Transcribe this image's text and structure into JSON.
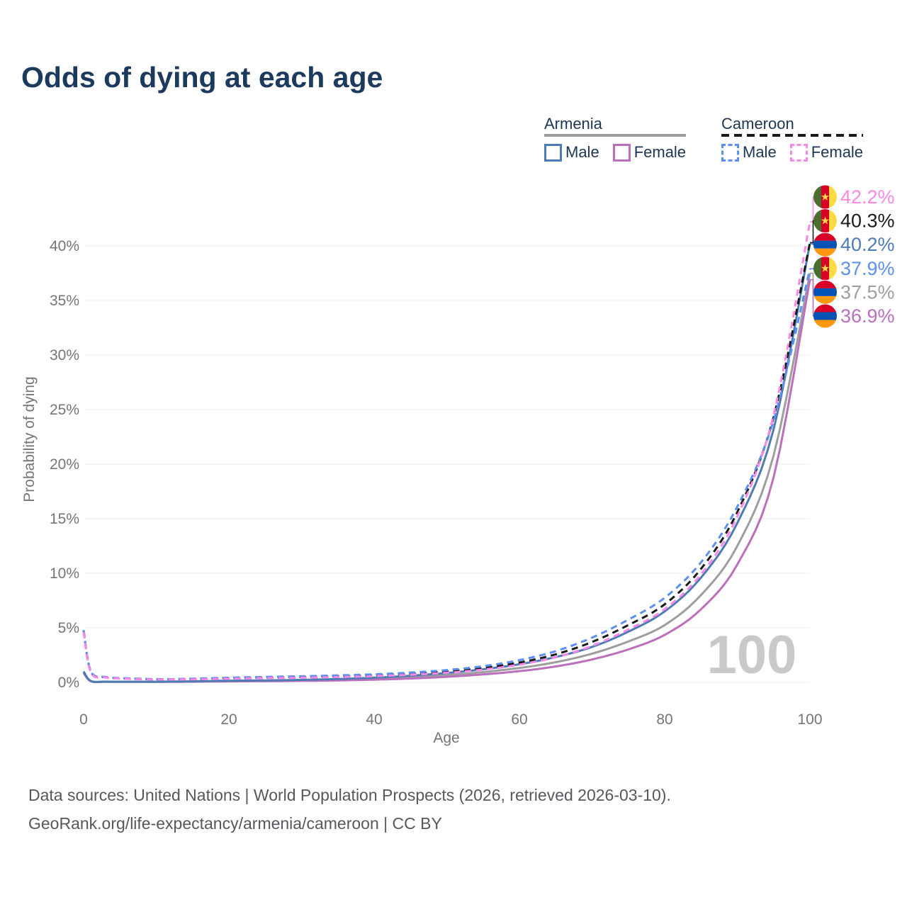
{
  "title": "Odds of dying at each age",
  "legend": {
    "groups": [
      {
        "name": "Armenia",
        "line_color": "#9e9e9e",
        "line_style": "solid",
        "items": [
          {
            "label": "Male",
            "color": "#4d7cb4",
            "style": "solid"
          },
          {
            "label": "Female",
            "color": "#bb6fbd",
            "style": "solid"
          }
        ]
      },
      {
        "name": "Cameroon",
        "line_color": "#1a1a1a",
        "line_style": "dashed",
        "items": [
          {
            "label": "Male",
            "color": "#5b8ff2",
            "style": "dashed"
          },
          {
            "label": "Female",
            "color": "#fb87e6",
            "style": "dashed"
          }
        ]
      }
    ]
  },
  "watermark": "100",
  "footer": {
    "line1": "Data sources: United Nations | World Population Prospects (2026, retrieved 2026-03-10).",
    "line2": "GeoRank.org/life-expectancy/armenia/cameroon | CC BY"
  },
  "flag_colors": {
    "armenia": [
      "#D80027",
      "#0052B4",
      "#FF9811"
    ],
    "cameroon": [
      "#496E2D",
      "#D80027",
      "#FFDA44"
    ]
  },
  "chart_data": {
    "type": "line",
    "title": "Odds of dying at each age",
    "xlabel": "Age",
    "ylabel": "Probability of dying",
    "xlim": [
      0,
      100
    ],
    "ylim": [
      0,
      43
    ],
    "x_ticks": [
      0,
      20,
      40,
      60,
      80,
      100
    ],
    "y_tick_labels": [
      "0%",
      "5%",
      "10%",
      "15%",
      "20%",
      "25%",
      "30%",
      "35%",
      "40%"
    ],
    "grid": "horizontal-only",
    "legend_position": "top-right",
    "ages": [
      0,
      1,
      3,
      5,
      10,
      15,
      20,
      25,
      30,
      35,
      40,
      45,
      50,
      55,
      60,
      65,
      70,
      75,
      80,
      85,
      90,
      95,
      100
    ],
    "series": [
      {
        "name": "Armenia Both",
        "country": "Armenia",
        "sex": "Both sexes",
        "color": "#9e9e9e",
        "dash": false,
        "end_label": "37.5%",
        "values": [
          0.9,
          0.11,
          0.06,
          0.05,
          0.05,
          0.08,
          0.12,
          0.14,
          0.18,
          0.24,
          0.33,
          0.47,
          0.67,
          0.94,
          1.32,
          1.85,
          2.63,
          3.75,
          5.25,
          8.0,
          12.5,
          20.8,
          37.5
        ]
      },
      {
        "name": "Armenia Female",
        "country": "Armenia",
        "sex": "Female",
        "color": "#bb6fbd",
        "dash": false,
        "end_label": "36.9%",
        "values": [
          0.85,
          0.1,
          0.05,
          0.045,
          0.045,
          0.06,
          0.09,
          0.11,
          0.14,
          0.18,
          0.25,
          0.35,
          0.51,
          0.73,
          1.03,
          1.46,
          2.1,
          3.02,
          4.35,
          6.7,
          10.8,
          18.8,
          36.9
        ]
      },
      {
        "name": "Armenia Male",
        "country": "Armenia",
        "sex": "Male",
        "color": "#4d7cb4",
        "dash": false,
        "end_label": "40.2%",
        "values": [
          1.0,
          0.12,
          0.07,
          0.06,
          0.06,
          0.1,
          0.15,
          0.18,
          0.23,
          0.31,
          0.43,
          0.61,
          0.86,
          1.2,
          1.66,
          2.32,
          3.25,
          4.65,
          6.5,
          9.6,
          14.6,
          23.2,
          40.2
        ]
      },
      {
        "name": "Cameroon Both",
        "country": "Cameroon",
        "sex": "Both sexes",
        "color": "#1a1a1a",
        "dash": true,
        "end_label": "40.3%",
        "values": [
          4.7,
          0.95,
          0.47,
          0.37,
          0.28,
          0.31,
          0.38,
          0.44,
          0.49,
          0.56,
          0.65,
          0.79,
          1.0,
          1.32,
          1.82,
          2.57,
          3.7,
          5.25,
          7.15,
          10.4,
          15.6,
          24.3,
          40.3
        ]
      },
      {
        "name": "Cameroon Male",
        "country": "Cameroon",
        "sex": "Male",
        "color": "#5b8ff2",
        "dash": true,
        "end_label": "37.9%",
        "values": [
          4.8,
          1.0,
          0.5,
          0.4,
          0.3,
          0.34,
          0.43,
          0.5,
          0.56,
          0.64,
          0.74,
          0.9,
          1.13,
          1.48,
          2.04,
          2.86,
          4.1,
          5.75,
          7.75,
          11.0,
          16.1,
          24.0,
          37.9
        ]
      },
      {
        "name": "Cameroon Female",
        "country": "Cameroon",
        "sex": "Female",
        "color": "#fb87e6",
        "dash": true,
        "end_label": "42.2%",
        "values": [
          4.6,
          0.9,
          0.45,
          0.35,
          0.26,
          0.28,
          0.34,
          0.39,
          0.43,
          0.49,
          0.57,
          0.7,
          0.88,
          1.17,
          1.62,
          2.3,
          3.35,
          4.85,
          6.7,
          9.9,
          15.2,
          24.5,
          42.2
        ]
      }
    ]
  }
}
